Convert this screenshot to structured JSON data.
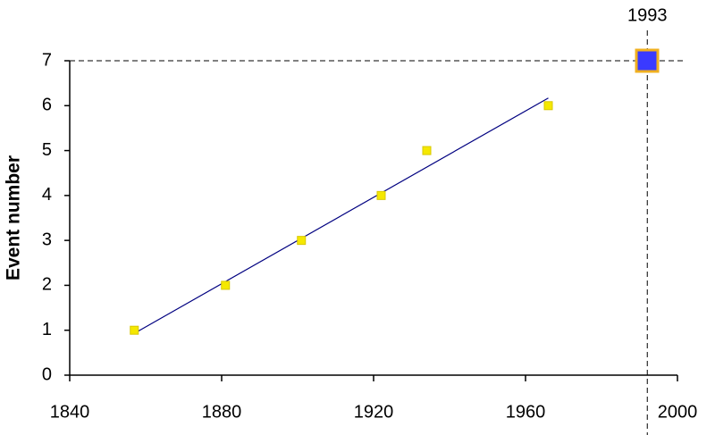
{
  "chart_data": {
    "type": "scatter",
    "ylabel": "Event number",
    "x": [
      1857,
      1881,
      1901,
      1922,
      1934,
      1966
    ],
    "values": [
      1,
      2,
      3,
      4,
      5,
      6
    ],
    "color": "#f5e800",
    "trendline": {
      "x": [
        1857,
        1966
      ],
      "values": [
        0.93,
        6.17
      ],
      "color": "#000080"
    },
    "highlight": {
      "x": 1992,
      "value": 7,
      "color": "#3a3aff",
      "edge": "#f0b020"
    },
    "annotation": {
      "value": 1993,
      "label": "1993"
    },
    "xlim": [
      1840,
      2000
    ],
    "ylim": [
      0,
      7
    ],
    "xticks": [
      1840,
      1880,
      1920,
      1960,
      2000
    ],
    "yticks": [
      0,
      1,
      2,
      3,
      4,
      5,
      6,
      7
    ]
  }
}
